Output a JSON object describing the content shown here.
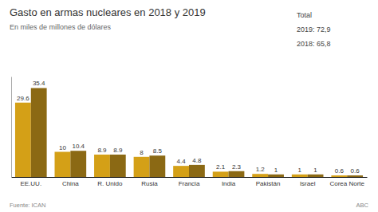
{
  "chart_data": {
    "type": "bar",
    "title": "Gasto en armas nucleares en 2018 y 2019",
    "subtitle": "En miles de millones de dólares",
    "categories": [
      "EE.UU.",
      "China",
      "R. Unido",
      "Rusia",
      "Francia",
      "India",
      "Pakistán",
      "Israel",
      "Corea Norte"
    ],
    "series": [
      {
        "color": "#D4A017",
        "values": [
          29.6,
          10.0,
          8.9,
          8.0,
          4.4,
          2.1,
          1.2,
          1.0,
          0.6
        ]
      },
      {
        "color": "#8B6914",
        "values": [
          35.4,
          10.4,
          8.9,
          8.5,
          4.8,
          2.3,
          1.0,
          1.0,
          0.6
        ]
      }
    ],
    "ylim": [
      0,
      40
    ],
    "grid": false,
    "data_labels": true,
    "tick_labels": "x",
    "annotations": [
      "Total",
      "2019: 72,9",
      "2018: 65,8",
      "Fuente: ICAN",
      "ABC"
    ]
  }
}
